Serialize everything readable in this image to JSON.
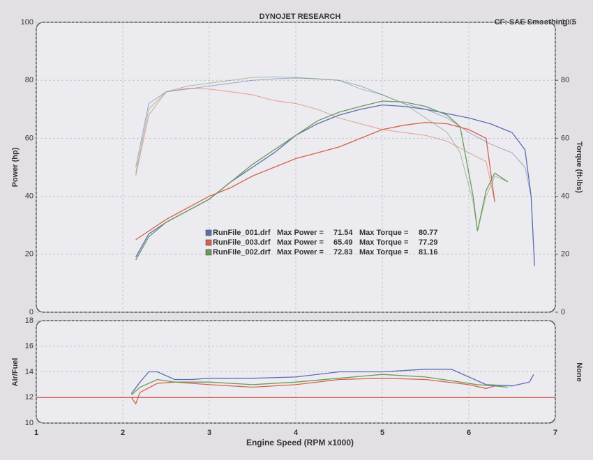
{
  "title": "DYNOJET RESEARCH",
  "settings_text": "CF: SAE  Smoothing: 5",
  "chart_data": [
    {
      "type": "line",
      "ylabel": "Power (hp)",
      "y2label": "Torque (ft-lbs)",
      "xlim": [
        1,
        7
      ],
      "xticks": [
        1,
        2,
        3,
        4,
        5,
        6,
        7
      ],
      "ylim": [
        0,
        100
      ],
      "yticks": [
        0,
        20,
        40,
        60,
        80,
        100
      ],
      "y2lim": [
        0,
        100
      ],
      "y2ticks": [
        0,
        20,
        40,
        60,
        80,
        100
      ],
      "grid": true,
      "legend_labels": [
        "Max Power =",
        "Max Torque ="
      ],
      "series": [
        {
          "name": "RunFile_001.drf",
          "color": "#5a6cb4",
          "max_power": 71.54,
          "max_torque": 80.77,
          "x": [
            2.15,
            2.3,
            2.5,
            2.75,
            3,
            3.25,
            3.5,
            3.75,
            4,
            4.25,
            4.5,
            4.75,
            5,
            5.25,
            5.5,
            5.75,
            6,
            6.25,
            6.5,
            6.65,
            6.72,
            6.76
          ],
          "power": [
            19,
            27,
            31,
            35,
            39,
            45,
            50,
            55,
            61,
            65,
            68,
            70,
            71.5,
            71,
            70,
            68.5,
            67,
            65,
            62,
            56,
            40,
            16
          ],
          "torque": [
            50,
            72,
            76,
            77,
            78,
            79,
            80,
            80.5,
            80.77,
            80.5,
            80,
            78,
            75,
            72,
            70,
            67,
            62,
            58,
            55,
            50,
            40,
            16
          ]
        },
        {
          "name": "RunFile_003.drf",
          "color": "#d8604c",
          "max_power": 65.49,
          "max_torque": 77.29,
          "x": [
            2.15,
            2.3,
            2.5,
            2.75,
            3,
            3.25,
            3.5,
            3.75,
            4,
            4.25,
            4.5,
            4.75,
            5,
            5.25,
            5.5,
            5.75,
            6,
            6.2,
            6.3
          ],
          "power": [
            25,
            28,
            32,
            36,
            40,
            43,
            47,
            50,
            53,
            55,
            57,
            60,
            63,
            64.5,
            65.49,
            65,
            63,
            60,
            38
          ],
          "torque": [
            47,
            68,
            76,
            77.29,
            77,
            76,
            75,
            73,
            72,
            70,
            67,
            65,
            63,
            62,
            61,
            59,
            55,
            52,
            38
          ]
        },
        {
          "name": "RunFile_002.drf",
          "color": "#6a9a58",
          "max_power": 72.83,
          "max_torque": 81.16,
          "x": [
            2.15,
            2.3,
            2.5,
            2.75,
            3,
            3.25,
            3.5,
            3.75,
            4,
            4.25,
            4.5,
            4.75,
            5,
            5.25,
            5.5,
            5.75,
            5.9,
            6.05,
            6.1,
            6.2,
            6.3,
            6.45
          ],
          "power": [
            18,
            26,
            31,
            35,
            39,
            45,
            51,
            56,
            61,
            66,
            69,
            71,
            72.83,
            72.5,
            71,
            68,
            64,
            40,
            28,
            42,
            48,
            45
          ],
          "torque": [
            48,
            70,
            76,
            78,
            79,
            80,
            81,
            81.16,
            81,
            80.5,
            80,
            77,
            75,
            72,
            67,
            62,
            55,
            38,
            28,
            40,
            47,
            45
          ]
        }
      ]
    },
    {
      "type": "line",
      "ylabel": "Air/Fuel",
      "y2label": "None",
      "xlabel": "Engine Speed (RPM x1000)",
      "xlim": [
        1,
        7
      ],
      "xticks": [
        1,
        2,
        3,
        4,
        5,
        6,
        7
      ],
      "ylim": [
        10,
        18
      ],
      "yticks": [
        10,
        12,
        14,
        16,
        18
      ],
      "grid": true,
      "ref_line": {
        "value": 12,
        "color": "#d04030"
      },
      "series": [
        {
          "color": "#5a6cb4",
          "x": [
            2.1,
            2.2,
            2.3,
            2.4,
            2.6,
            2.8,
            3,
            3.5,
            4,
            4.5,
            5,
            5.5,
            5.8,
            6,
            6.2,
            6.5,
            6.7,
            6.75
          ],
          "values": [
            12.3,
            13.2,
            14.0,
            14.0,
            13.4,
            13.4,
            13.5,
            13.5,
            13.6,
            14.0,
            14.0,
            14.2,
            14.2,
            13.6,
            13.0,
            12.9,
            13.2,
            13.8
          ]
        },
        {
          "color": "#d8604c",
          "x": [
            2.1,
            2.15,
            2.2,
            2.4,
            2.6,
            3,
            3.5,
            4,
            4.5,
            5,
            5.5,
            6,
            6.2,
            6.3
          ],
          "values": [
            12.0,
            11.5,
            12.4,
            13.1,
            13.2,
            13.0,
            12.8,
            13.0,
            13.4,
            13.5,
            13.4,
            13.0,
            12.7,
            12.9
          ]
        },
        {
          "color": "#6a9a58",
          "x": [
            2.1,
            2.2,
            2.4,
            2.6,
            3,
            3.5,
            4,
            4.5,
            5,
            5.5,
            5.9,
            6.1,
            6.3,
            6.45
          ],
          "values": [
            12.2,
            12.8,
            13.4,
            13.2,
            13.2,
            13.0,
            13.2,
            13.5,
            13.8,
            13.6,
            13.2,
            13.0,
            12.9,
            12.8
          ]
        }
      ]
    }
  ]
}
